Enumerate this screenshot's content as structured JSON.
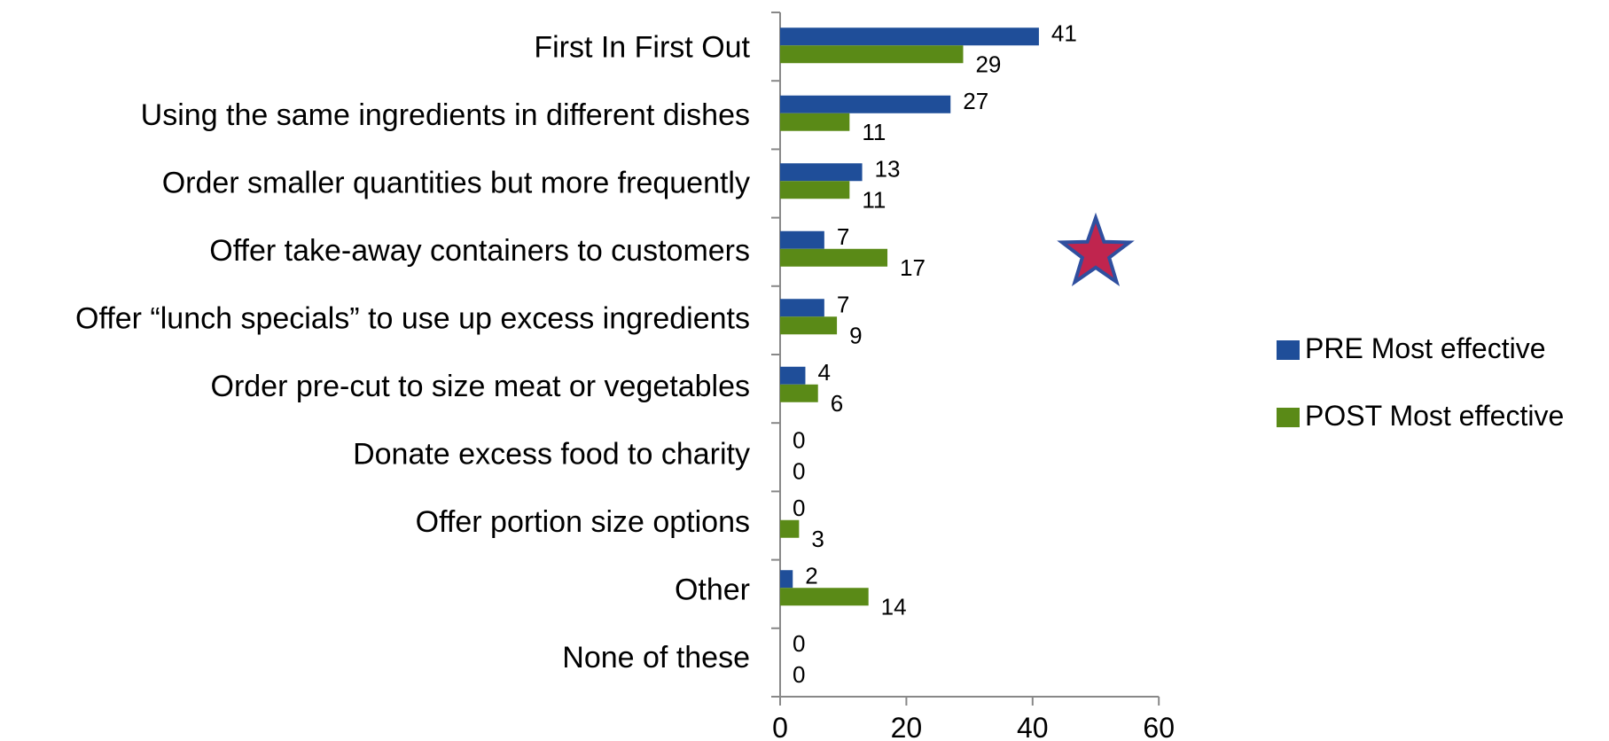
{
  "chart_data": {
    "type": "bar",
    "orientation": "horizontal",
    "categories": [
      "First In First Out",
      "Using the same ingredients in different dishes",
      "Order smaller quantities but more frequently",
      "Offer take-away containers to customers",
      "Offer “lunch specials” to use up excess ingredients",
      "Order pre-cut to size meat or vegetables",
      "Donate excess food to charity",
      "Offer portion size options",
      "Other",
      "None of these"
    ],
    "series": [
      {
        "name": "PRE Most effective",
        "color": "#1f4e99",
        "values": [
          41,
          27,
          13,
          7,
          7,
          4,
          0,
          0,
          2,
          0
        ]
      },
      {
        "name": "POST Most effective",
        "color": "#5a8a17",
        "values": [
          29,
          11,
          11,
          17,
          9,
          6,
          0,
          3,
          14,
          0
        ]
      }
    ],
    "xticks": [
      "0",
      "20",
      "40",
      "60"
    ],
    "xlim": [
      0,
      60
    ],
    "title": "",
    "xlabel": "",
    "ylabel": "",
    "grid": false,
    "legend_position": "right",
    "annotation": {
      "type": "star-icon",
      "category": "Offer take-away containers to customers",
      "fill": "#c0254e",
      "stroke": "#2f4f9f"
    }
  }
}
